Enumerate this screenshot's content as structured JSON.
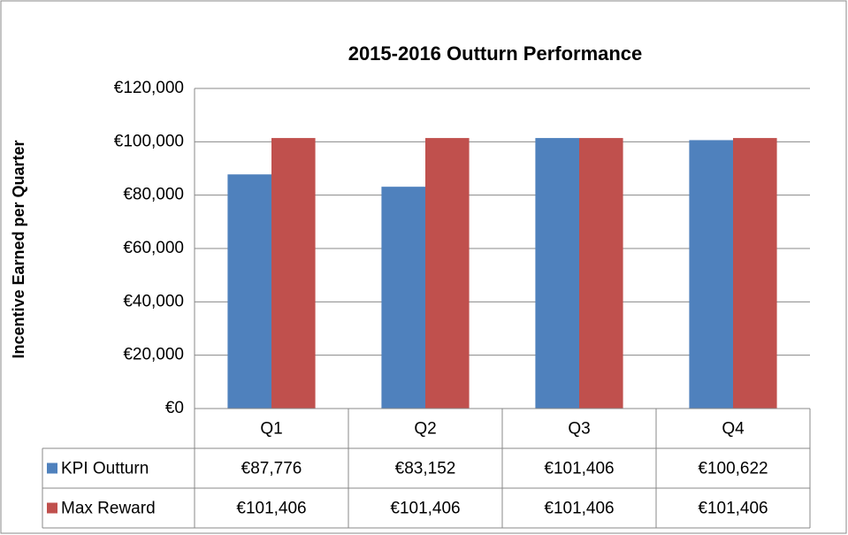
{
  "chart_data": {
    "type": "bar",
    "title": "2015-2016 Outturn Performance",
    "y_label": "Incentive Earned per Quarter",
    "categories": [
      "Q1",
      "Q2",
      "Q3",
      "Q4"
    ],
    "series": [
      {
        "name": "KPI Outturn",
        "color": "#4f81bd",
        "values": [
          87776,
          83152,
          101406,
          100622
        ],
        "value_labels": [
          "€87,776",
          "€83,152",
          "€101,406",
          "€100,622"
        ]
      },
      {
        "name": "Max Reward",
        "color": "#c0504d",
        "values": [
          101406,
          101406,
          101406,
          101406
        ],
        "value_labels": [
          "€101,406",
          "€101,406",
          "€101,406",
          "€101,406"
        ]
      }
    ],
    "ylim": [
      0,
      120000
    ],
    "yticks": [
      {
        "value": 0,
        "label": "€0"
      },
      {
        "value": 20000,
        "label": "€20,000"
      },
      {
        "value": 40000,
        "label": "€40,000"
      },
      {
        "value": 60000,
        "label": "€60,000"
      },
      {
        "value": 80000,
        "label": "€80,000"
      },
      {
        "value": 100000,
        "label": "€100,000"
      },
      {
        "value": 120000,
        "label": "€120,000"
      }
    ],
    "grid": true
  }
}
